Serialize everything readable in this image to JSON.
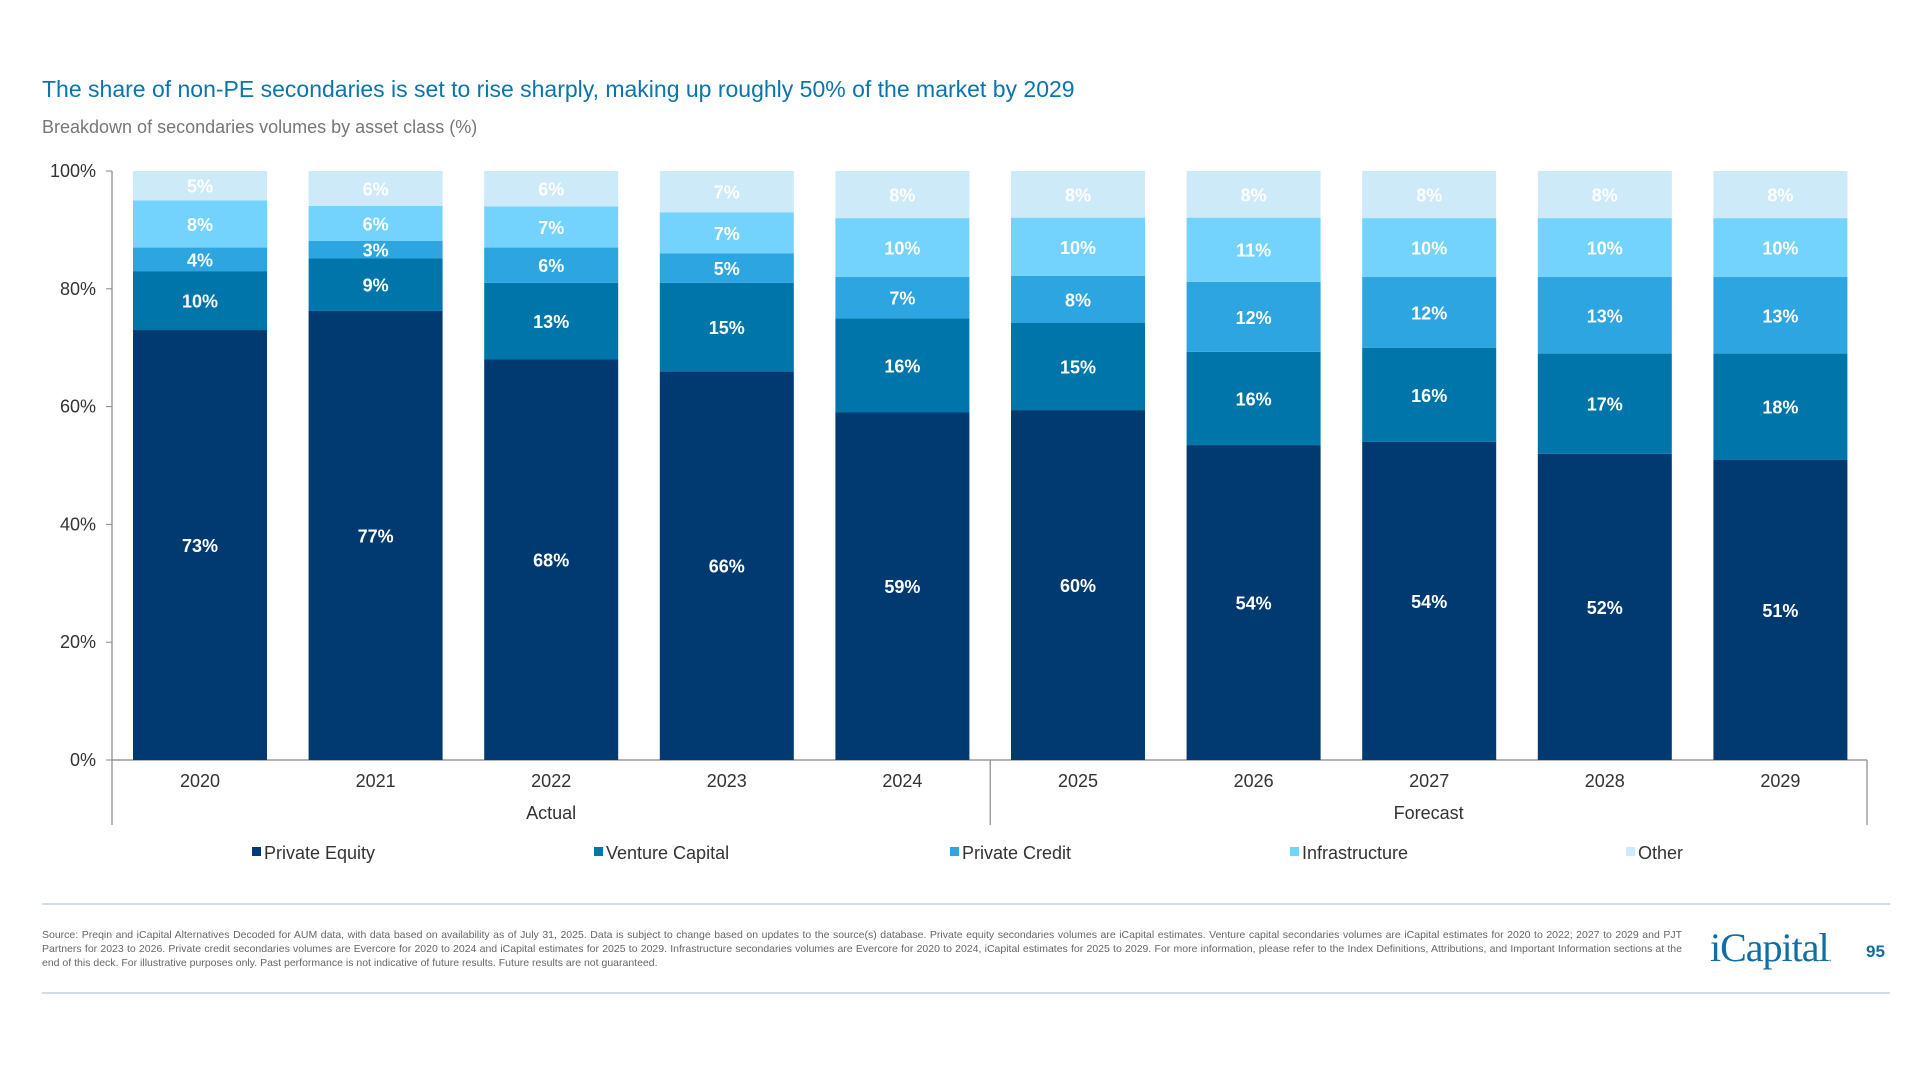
{
  "header": {
    "title": "The share of non-PE secondaries is set to rise sharply, making up roughly 50% of the market by 2029",
    "subtitle": "Breakdown of secondaries volumes by asset class (%)"
  },
  "chart_data": {
    "type": "bar",
    "stacked": true,
    "categories": [
      "2020",
      "2021",
      "2022",
      "2023",
      "2024",
      "2025",
      "2026",
      "2027",
      "2028",
      "2029"
    ],
    "groups": [
      {
        "label": "Actual",
        "categories": [
          "2020",
          "2021",
          "2022",
          "2023",
          "2024"
        ]
      },
      {
        "label": "Forecast",
        "categories": [
          "2025",
          "2026",
          "2027",
          "2028",
          "2029"
        ]
      }
    ],
    "series": [
      {
        "name": "Private Equity",
        "color": "#003a70",
        "values": [
          73,
          77,
          68,
          66,
          59,
          60,
          54,
          54,
          52,
          51
        ]
      },
      {
        "name": "Venture Capital",
        "color": "#0075a9",
        "values": [
          10,
          9,
          13,
          15,
          16,
          15,
          16,
          16,
          17,
          18
        ]
      },
      {
        "name": "Private Credit",
        "color": "#2ca5e0",
        "values": [
          4,
          3,
          6,
          5,
          7,
          8,
          12,
          12,
          13,
          13
        ]
      },
      {
        "name": "Infrastructure",
        "color": "#74d3fc",
        "values": [
          8,
          6,
          7,
          7,
          10,
          10,
          11,
          10,
          10,
          10
        ]
      },
      {
        "name": "Other",
        "color": "#cdeaf8",
        "values": [
          5,
          6,
          6,
          7,
          8,
          8,
          8,
          8,
          8,
          8
        ]
      }
    ],
    "ylim": [
      0,
      100
    ],
    "yticks": [
      "0%",
      "20%",
      "40%",
      "60%",
      "80%",
      "100%"
    ],
    "value_suffix": "%",
    "legend": "bottom",
    "grid": false
  },
  "footer": {
    "source": "Source: Preqin and iCapital Alternatives Decoded for AUM data, with data based on availability as of July 31, 2025. Data is subject to change based on updates to the source(s) database. Private equity secondaries volumes are iCapital estimates. Venture capital secondaries volumes are iCapital estimates for 2020 to 2022; 2027 to 2029 and PJT Partners for 2023 to 2026. Private credit secondaries volumes are Evercore for 2020 to 2024 and iCapital estimates for 2025 to 2029. Infrastructure secondaries volumes are Evercore for 2020 to 2024, iCapital estimates for 2025 to 2029. For more information, please refer to the Index Definitions, Attributions, and Important Information sections at the end of this deck. For illustrative purposes only. Past performance is not indicative of future results. Future results are not guaranteed.",
    "logo": "iCapital",
    "page_number": "95"
  }
}
